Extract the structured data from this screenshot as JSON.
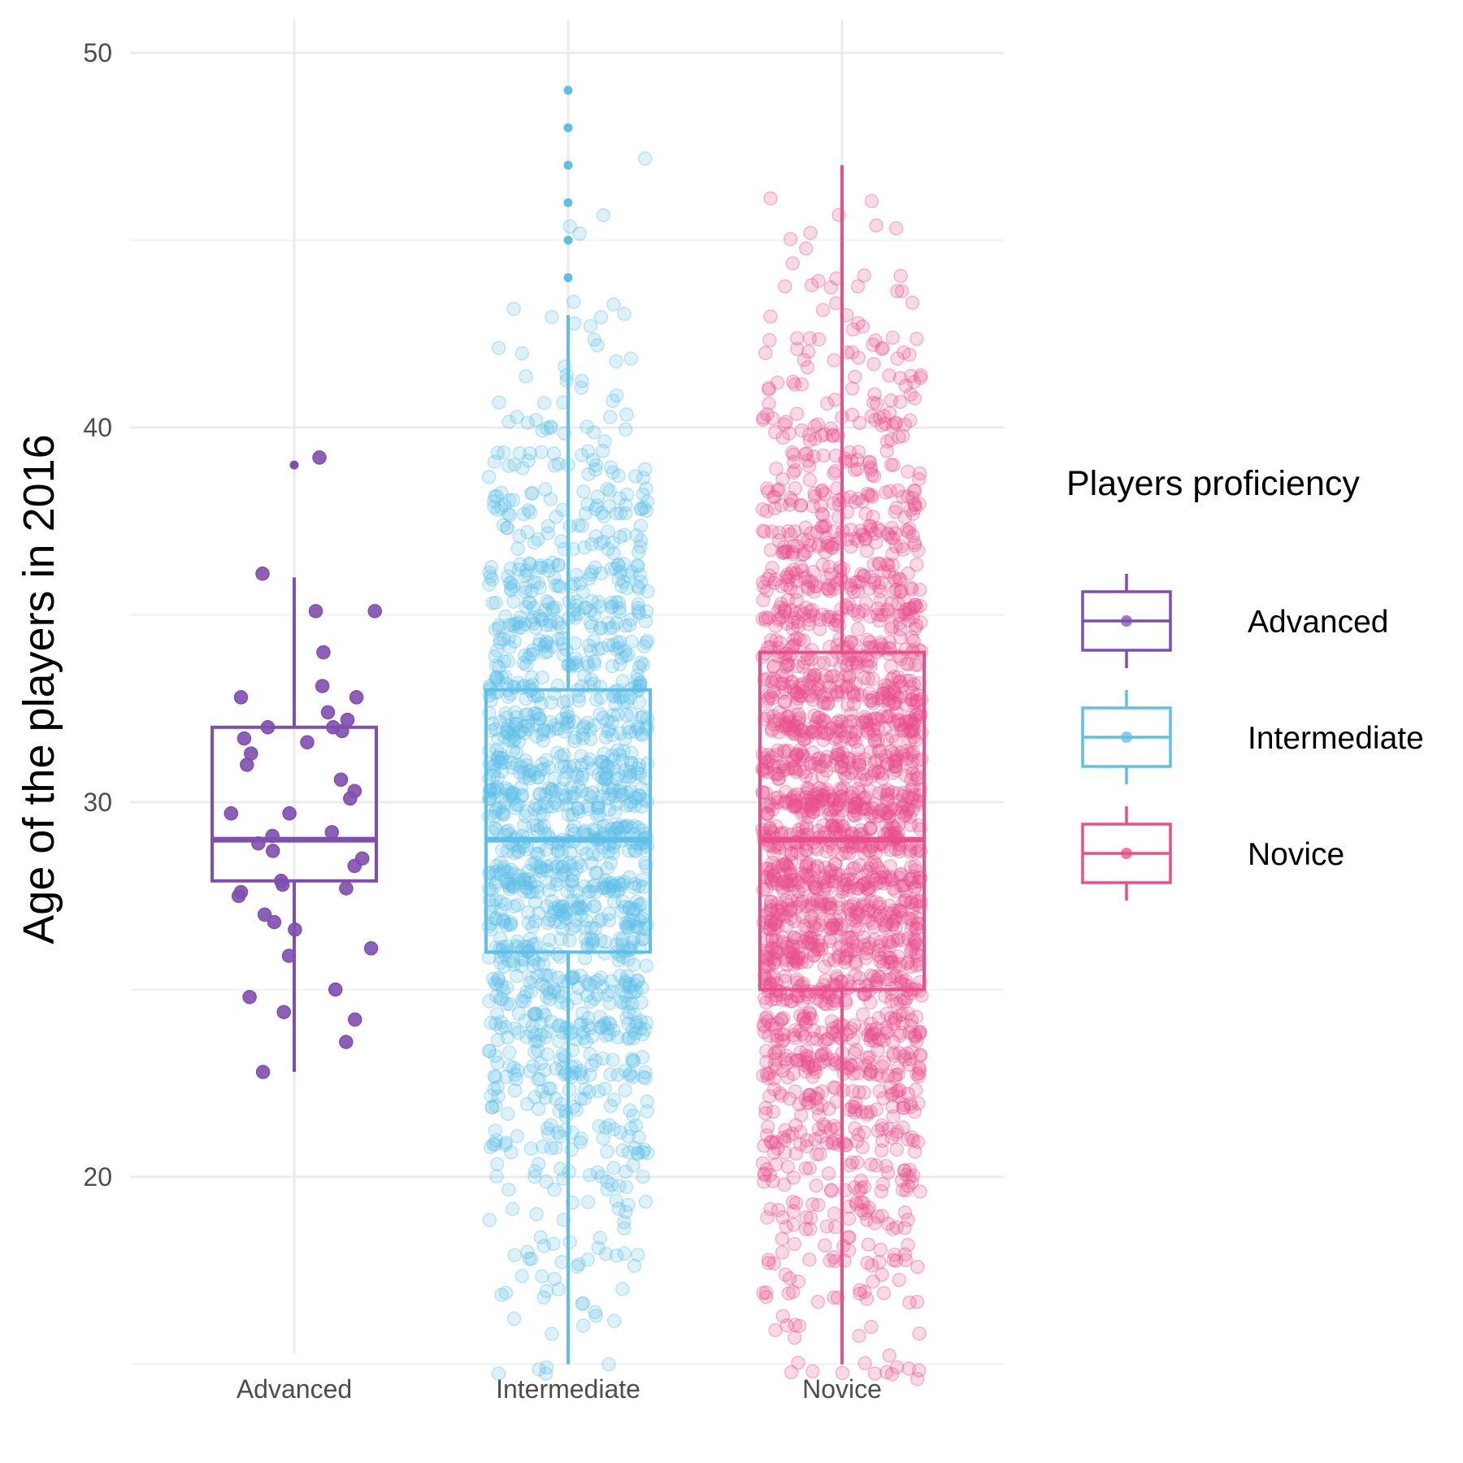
{
  "chart_data": {
    "type": "boxplot",
    "categories": [
      "Advanced",
      "Intermediate",
      "Novice"
    ],
    "ylabel": "Age of the players in 2016",
    "xlabel": "",
    "ylim": [
      13.5,
      51
    ],
    "yticks": [
      20,
      30,
      40,
      50
    ],
    "grid": true,
    "legend": {
      "title": "Players proficiency",
      "position": "right",
      "entries": [
        "Advanced",
        "Intermediate",
        "Novice"
      ]
    },
    "series": [
      {
        "name": "Advanced",
        "color": "#7f4fb0",
        "box": {
          "q1": 27.9,
          "median": 29.0,
          "q3": 32.0,
          "whisker_low": 22.8,
          "whisker_high": 36.0
        },
        "outliers": [
          39.0
        ],
        "points": [
          39.2,
          36.1,
          35.1,
          35.1,
          34.0,
          33.1,
          32.8,
          32.8,
          32.4,
          32.2,
          32.0,
          32.0,
          31.9,
          31.7,
          31.6,
          31.3,
          31.0,
          30.6,
          30.3,
          30.1,
          29.7,
          29.7,
          29.2,
          29.1,
          28.9,
          28.7,
          28.5,
          28.3,
          27.9,
          27.8,
          27.7,
          27.6,
          27.5,
          27.0,
          26.8,
          26.6,
          26.1,
          25.9,
          25.0,
          24.8,
          24.4,
          24.2,
          23.6,
          22.8
        ]
      },
      {
        "name": "Intermediate",
        "color": "#5ec0e6",
        "box": {
          "q1": 26.0,
          "median": 29.0,
          "q3": 33.0,
          "whisker_low": 15.0,
          "whisker_high": 43.0
        },
        "outliers": [
          44.0,
          45.0,
          46.0,
          47.0,
          48.0,
          49.0
        ],
        "point_count": 1500,
        "point_range": [
          14.8,
          49.3
        ]
      },
      {
        "name": "Novice",
        "color": "#e8508c",
        "box": {
          "q1": 25.0,
          "median": 29.0,
          "q3": 34.0,
          "whisker_low": 15.0,
          "whisker_high": 47.0
        },
        "outliers": [],
        "point_count": 2300,
        "point_range": [
          14.8,
          47.2
        ]
      }
    ]
  }
}
